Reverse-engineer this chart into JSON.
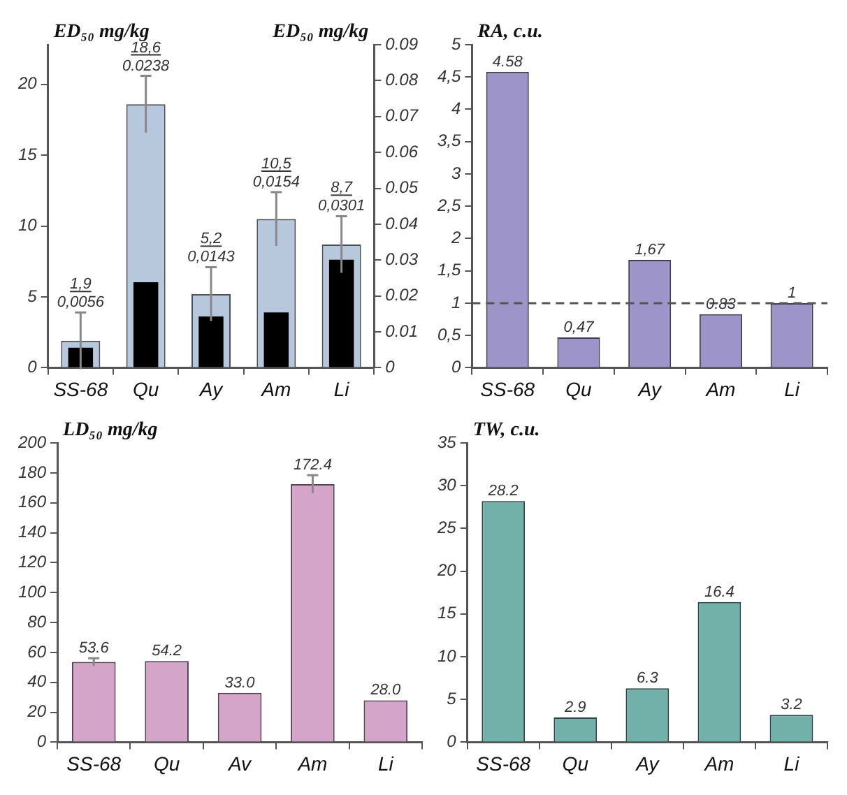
{
  "chart_data": [
    {
      "type": "bar",
      "ylabel": "ED₅₀ mg/kg",
      "y2label": "ED₅₀ mg/kg",
      "categories": [
        "SS-68",
        "Qu",
        "Ay",
        "Am",
        "Li"
      ],
      "ylim": [
        0,
        22.8
      ],
      "yticks": [
        0,
        5,
        10,
        15,
        20
      ],
      "y2lim": [
        0,
        0.09
      ],
      "y2ticks": [
        0,
        0.01,
        0.02,
        0.03,
        0.04,
        0.05,
        0.06,
        0.07,
        0.08,
        0.09
      ],
      "series": [
        {
          "color": "#b7c8dc",
          "values": [
            1.9,
            18.6,
            5.2,
            10.5,
            8.7
          ],
          "errors": [
            2.0,
            2.0,
            1.9,
            1.9,
            2.0
          ]
        },
        {
          "color": "#000000",
          "axis": "y2",
          "values": [
            0.0056,
            0.0238,
            0.0143,
            0.0154,
            0.0301
          ]
        }
      ],
      "annotations": [
        {
          "text": "1,9",
          "x": "SS-68",
          "y": 3.9
        },
        {
          "text": "0,0056",
          "x": "SS-68",
          "y": 3.9
        },
        {
          "text": "18,6",
          "x": "Qu",
          "y": 20.6
        },
        {
          "text": "0.0238",
          "x": "Qu",
          "y": 20.6
        },
        {
          "text": "5,2",
          "x": "Ay",
          "y": 7.1
        },
        {
          "text": "0,0143",
          "x": "Ay",
          "y": 7.1
        },
        {
          "text": "10,5",
          "x": "Am",
          "y": 12.4
        },
        {
          "text": "0,0154",
          "x": "Am",
          "y": 12.4
        },
        {
          "text": "8,7",
          "x": "Li",
          "y": 10.7
        },
        {
          "text": "0,0301",
          "x": "Li",
          "y": 10.7
        }
      ]
    },
    {
      "type": "bar",
      "ylabel": "RA, c.u.",
      "categories": [
        "SS-68",
        "Qu",
        "Ay",
        "Am",
        "Li"
      ],
      "ylim": [
        0,
        5
      ],
      "yticks": [
        0,
        {
          "value": 0.5,
          "label": "0,5"
        },
        1,
        {
          "value": 1.5,
          "label": "1,5"
        },
        2,
        {
          "value": 2.5,
          "label": "2,5"
        },
        3,
        {
          "value": 3.5,
          "label": "3,5"
        },
        4,
        {
          "value": 4.5,
          "label": "4,5"
        },
        5
      ],
      "ref_lines": [
        {
          "axis": "y",
          "value": 1,
          "line_style": "dashed",
          "color": "#555555"
        }
      ],
      "series": [
        {
          "color": "#9d95c9",
          "values": [
            4.58,
            0.47,
            1.67,
            0.83,
            1
          ],
          "value_labels": [
            "4.58",
            "0,47",
            "1,67",
            "0.83",
            "1"
          ]
        }
      ]
    },
    {
      "type": "bar",
      "ylabel": "LD₅₀ mg/kg",
      "categories": [
        "SS-68",
        "Qu",
        "Av",
        "Am",
        "Li"
      ],
      "ylim": [
        0,
        200
      ],
      "yticks": [
        0,
        20,
        40,
        60,
        80,
        100,
        120,
        140,
        160,
        180,
        200
      ],
      "series": [
        {
          "color": "#d4a5c8",
          "values": [
            53.6,
            54.2,
            33.0,
            172.4,
            28.0
          ],
          "errors": [
            2.5,
            null,
            null,
            6,
            null
          ],
          "value_labels": [
            "53.6",
            "54.2",
            "33.0",
            "172.4",
            "28.0"
          ]
        }
      ]
    },
    {
      "type": "bar",
      "ylabel": "TW, c.u.",
      "categories": [
        "SS-68",
        "Qu",
        "Ay",
        "Am",
        "Li"
      ],
      "ylim": [
        0,
        35
      ],
      "yticks": [
        0,
        5,
        10,
        15,
        20,
        25,
        30,
        35
      ],
      "series": [
        {
          "color": "#72b0aa",
          "values": [
            28.2,
            2.9,
            6.3,
            16.4,
            3.2
          ],
          "value_labels": [
            "28.2",
            "2.9",
            "6.3",
            "16.4",
            "3.2"
          ]
        }
      ]
    }
  ]
}
